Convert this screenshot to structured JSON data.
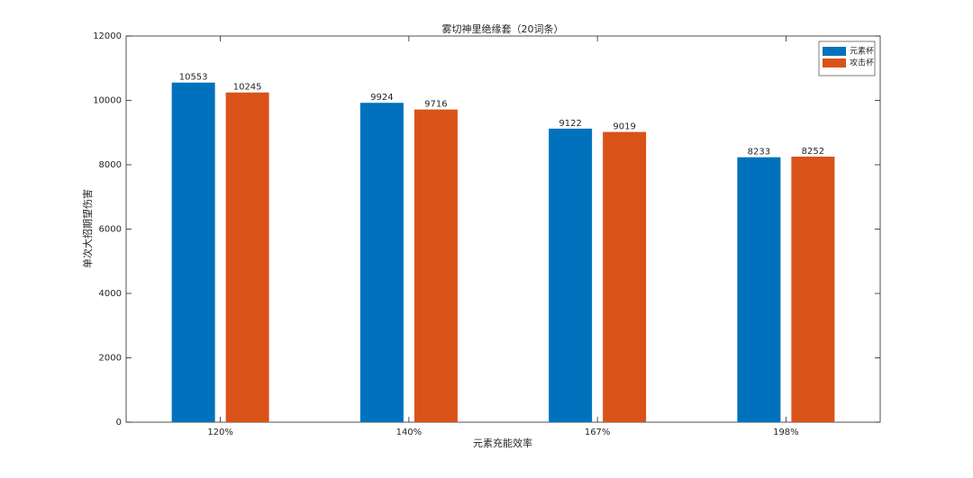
{
  "chart_data": {
    "type": "bar",
    "title": "雾切神里绝缘套（20词条）",
    "x_label": "元素充能效率",
    "y_label": "单次大招期望伤害",
    "categories": [
      "120%",
      "140%",
      "167%",
      "198%"
    ],
    "series": [
      {
        "name": "元素杯",
        "color": "#0072bd",
        "values": [
          10553,
          9924,
          9122,
          8233
        ]
      },
      {
        "name": "攻击杯",
        "color": "#d95319",
        "values": [
          10245,
          9716,
          9019,
          8252
        ]
      }
    ],
    "ylim": [
      0,
      12000
    ],
    "yticks": [
      0,
      2000,
      4000,
      6000,
      8000,
      10000,
      12000
    ],
    "grid": false,
    "legend": "northeast",
    "data_labels": true
  }
}
